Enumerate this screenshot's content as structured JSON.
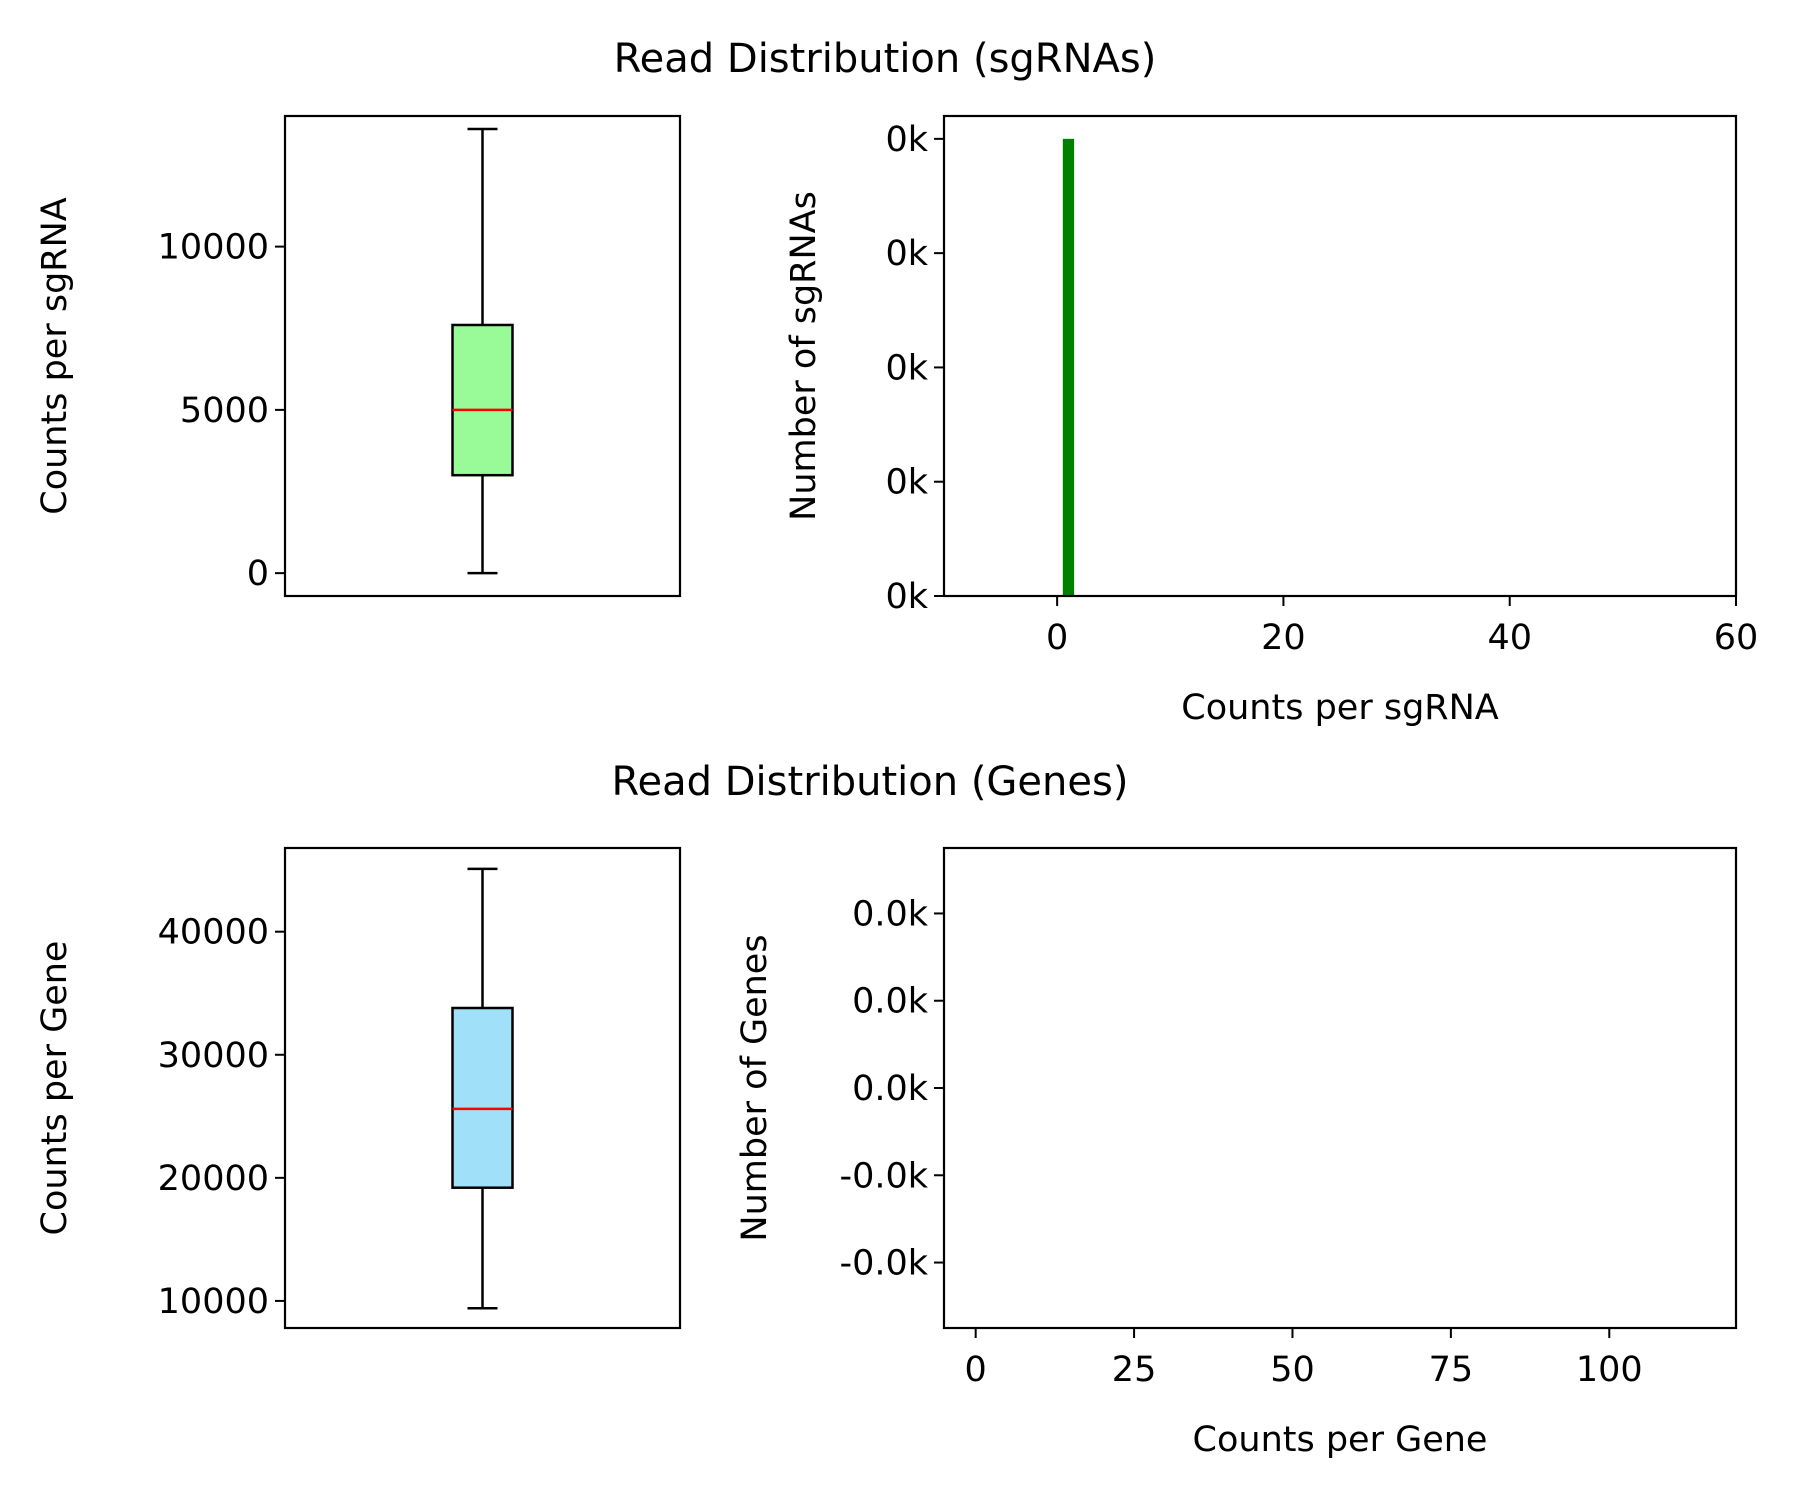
{
  "figure": {
    "top_title": "Read Distribution (sgRNAs)",
    "bottom_title": "Read Distribution (Genes)"
  },
  "colors": {
    "sgrna_box_fill": "#98fb98",
    "gene_box_fill": "#a0e0f8",
    "median_line": "#ff0000",
    "histogram_bar": "#008000",
    "axis": "#000000"
  },
  "chart_data": [
    {
      "id": "sgrna_box",
      "type": "box",
      "ylabel": "Counts per sgRNA",
      "ylim": [
        -700,
        14000
      ],
      "yticks": [
        0,
        5000,
        10000
      ],
      "ytick_labels": [
        "0",
        "5000",
        "10000"
      ],
      "box": {
        "whisker_low": 0,
        "q1": 3000,
        "median": 5000,
        "q3": 7600,
        "whisker_high": 13600
      },
      "grid": false
    },
    {
      "id": "sgrna_hist",
      "type": "bar",
      "xlabel": "Counts per sgRNA",
      "ylabel": "Number of sgRNAs",
      "xlim": [
        -10,
        60
      ],
      "xticks": [
        0,
        20,
        40,
        60
      ],
      "xtick_labels": [
        "0",
        "20",
        "40",
        "60"
      ],
      "ylim": [
        0,
        4.2
      ],
      "yticks": [
        0,
        1,
        2,
        3,
        4
      ],
      "ytick_labels": [
        "0k",
        "0k",
        "0k",
        "0k",
        "0k"
      ],
      "bars": [
        {
          "x0": 0.5,
          "x1": 1.5,
          "value": 4
        }
      ],
      "grid": false
    },
    {
      "id": "gene_box",
      "type": "box",
      "ylabel": "Counts per Gene",
      "ylim": [
        7800,
        46800
      ],
      "yticks": [
        10000,
        20000,
        30000,
        40000
      ],
      "ytick_labels": [
        "10000",
        "20000",
        "30000",
        "40000"
      ],
      "box": {
        "whisker_low": 9400,
        "q1": 19200,
        "median": 25600,
        "q3": 33800,
        "whisker_high": 45100
      },
      "grid": false
    },
    {
      "id": "gene_hist",
      "type": "bar",
      "xlabel": "Counts per Gene",
      "ylabel": "Number of Genes",
      "xlim": [
        -5,
        120
      ],
      "xticks": [
        0,
        25,
        50,
        75,
        100
      ],
      "xtick_labels": [
        "0",
        "25",
        "50",
        "75",
        "100"
      ],
      "ylim": [
        -0.0055,
        0.0055
      ],
      "yticks": [
        -0.004,
        -0.002,
        0.0,
        0.002,
        0.004
      ],
      "ytick_labels": [
        "-0.0k",
        "-0.0k",
        "0.0k",
        "0.0k",
        "0.0k"
      ],
      "bars": [],
      "grid": false
    }
  ]
}
